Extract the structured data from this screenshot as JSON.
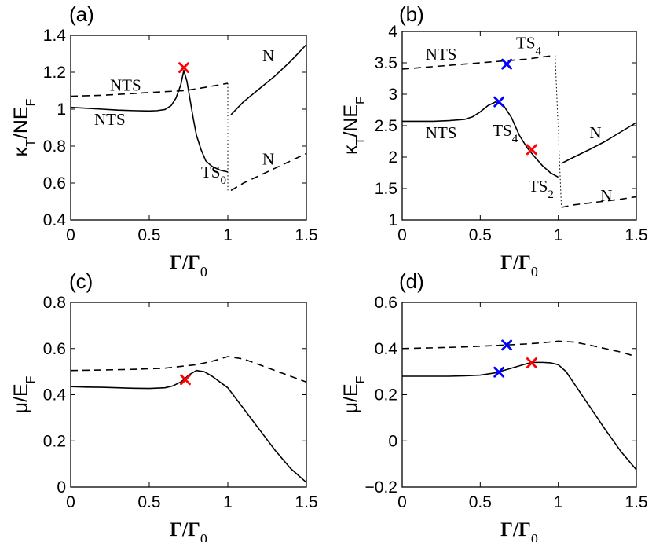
{
  "chart_data": [
    {
      "panel": "(a)",
      "type": "line",
      "xlabel": "Γ/Γ₀",
      "ylabel": "κT/NEF",
      "xlim": [
        0,
        1.5
      ],
      "ylim": [
        0.4,
        1.4
      ],
      "xticks": [
        "0",
        "0.5",
        "1",
        "1.5"
      ],
      "yticks": [
        "0.4",
        "0.6",
        "0.8",
        "1",
        "1.2",
        "1.4"
      ],
      "series": [
        {
          "name": "NTS solid",
          "style": "solid",
          "x": [
            0,
            0.1,
            0.2,
            0.3,
            0.4,
            0.5,
            0.55,
            0.6,
            0.64,
            0.67,
            0.7,
            0.72,
            0.74,
            0.76,
            0.78,
            0.8,
            0.83,
            0.86,
            0.9,
            0.95,
            1.0
          ],
          "y": [
            1.01,
            1.005,
            1.0,
            0.995,
            0.992,
            0.99,
            0.992,
            0.998,
            1.02,
            1.06,
            1.13,
            1.21,
            1.15,
            1.05,
            0.95,
            0.86,
            0.78,
            0.72,
            0.69,
            0.67,
            0.66
          ]
        },
        {
          "name": "NTS dashed",
          "style": "dashed",
          "x": [
            0,
            0.2,
            0.4,
            0.6,
            0.72,
            0.8,
            0.9,
            1.0
          ],
          "y": [
            1.07,
            1.075,
            1.085,
            1.095,
            1.1,
            1.11,
            1.125,
            1.14
          ]
        },
        {
          "name": "N solid",
          "style": "solid",
          "x": [
            1.02,
            1.1,
            1.2,
            1.3,
            1.4,
            1.5
          ],
          "y": [
            0.97,
            1.04,
            1.11,
            1.18,
            1.26,
            1.35
          ]
        },
        {
          "name": "N dashed",
          "style": "dashed",
          "x": [
            1.02,
            1.1,
            1.2,
            1.3,
            1.4,
            1.5
          ],
          "y": [
            0.56,
            0.6,
            0.64,
            0.68,
            0.72,
            0.76
          ]
        },
        {
          "name": "transition",
          "style": "dotted",
          "x": [
            1.0,
            1.0
          ],
          "y": [
            1.14,
            0.56
          ]
        }
      ],
      "markers": [
        {
          "x": 0.72,
          "y": 1.225,
          "color": "#ff0000"
        }
      ],
      "annotations": [
        {
          "text": "NTS",
          "x": 0.25,
          "y": 1.1
        },
        {
          "text": "NTS",
          "x": 0.15,
          "y": 0.915
        },
        {
          "text": "TS",
          "sub": "0",
          "x": 0.83,
          "y": 0.63
        },
        {
          "text": "N",
          "x": 1.22,
          "y": 1.26
        },
        {
          "text": "N",
          "x": 1.22,
          "y": 0.7
        }
      ]
    },
    {
      "panel": "(b)",
      "type": "line",
      "xlabel": "Γ/Γ₀",
      "ylabel": "κT/NEF",
      "xlim": [
        0,
        1.5
      ],
      "ylim": [
        1,
        4
      ],
      "xticks": [
        "0",
        "0.5",
        "1",
        "1.5"
      ],
      "yticks": [
        "1",
        "1.5",
        "2",
        "2.5",
        "3",
        "3.5",
        "4"
      ],
      "series": [
        {
          "name": "NTS solid",
          "style": "solid",
          "x": [
            0,
            0.1,
            0.2,
            0.3,
            0.4,
            0.45,
            0.5,
            0.55,
            0.6,
            0.65,
            0.7,
            0.75,
            0.8,
            0.85,
            0.9,
            0.95,
            1.0
          ],
          "y": [
            2.57,
            2.57,
            2.57,
            2.58,
            2.6,
            2.64,
            2.72,
            2.82,
            2.88,
            2.82,
            2.63,
            2.35,
            2.15,
            2.0,
            1.86,
            1.75,
            1.68
          ]
        },
        {
          "name": "NTS dashed",
          "style": "dashed",
          "x": [
            0,
            0.2,
            0.4,
            0.6,
            0.8,
            0.98
          ],
          "y": [
            3.4,
            3.44,
            3.48,
            3.52,
            3.56,
            3.62
          ]
        },
        {
          "name": "N solid",
          "style": "solid",
          "x": [
            1.02,
            1.1,
            1.2,
            1.3,
            1.4,
            1.5
          ],
          "y": [
            1.9,
            2.0,
            2.12,
            2.25,
            2.4,
            2.55
          ]
        },
        {
          "name": "N dashed",
          "style": "dashed",
          "x": [
            1.02,
            1.1,
            1.2,
            1.3,
            1.4,
            1.5
          ],
          "y": [
            1.2,
            1.24,
            1.27,
            1.3,
            1.33,
            1.37
          ]
        },
        {
          "name": "transition",
          "style": "dotted",
          "x": [
            0.98,
            1.02
          ],
          "y": [
            3.62,
            1.2
          ]
        }
      ],
      "markers": [
        {
          "x": 0.67,
          "y": 3.48,
          "color": "#0000ff"
        },
        {
          "x": 0.62,
          "y": 2.88,
          "color": "#0000ff"
        },
        {
          "x": 0.83,
          "y": 2.12,
          "color": "#ff0000"
        }
      ],
      "annotations": [
        {
          "text": "NTS",
          "x": 0.15,
          "y": 3.55
        },
        {
          "text": "TS",
          "sub": "4",
          "x": 0.73,
          "y": 3.73
        },
        {
          "text": "NTS",
          "x": 0.15,
          "y": 2.3
        },
        {
          "text": "TS",
          "sub": "4",
          "x": 0.58,
          "y": 2.34
        },
        {
          "text": "TS",
          "sub": "2",
          "x": 0.81,
          "y": 1.45
        },
        {
          "text": "N",
          "x": 1.2,
          "y": 2.3
        },
        {
          "text": "N",
          "x": 1.27,
          "y": 1.3
        }
      ]
    },
    {
      "panel": "(c)",
      "type": "line",
      "xlabel": "Γ/Γ₀",
      "ylabel": "μ/EF",
      "xlim": [
        0,
        1.5
      ],
      "ylim": [
        0,
        0.8
      ],
      "xticks": [
        "0",
        "0.5",
        "1",
        "1.5"
      ],
      "yticks": [
        "0",
        "0.2",
        "0.4",
        "0.6",
        "0.8"
      ],
      "series": [
        {
          "name": "solid",
          "style": "solid",
          "x": [
            0,
            0.1,
            0.2,
            0.3,
            0.4,
            0.5,
            0.6,
            0.65,
            0.7,
            0.72,
            0.75,
            0.8,
            0.85,
            0.9,
            1.0,
            1.1,
            1.2,
            1.3,
            1.4,
            1.5
          ],
          "y": [
            0.435,
            0.433,
            0.432,
            0.43,
            0.428,
            0.427,
            0.43,
            0.438,
            0.455,
            0.465,
            0.485,
            0.505,
            0.5,
            0.48,
            0.43,
            0.34,
            0.25,
            0.16,
            0.08,
            0.02
          ]
        },
        {
          "name": "dashed",
          "style": "dashed",
          "x": [
            0,
            0.2,
            0.4,
            0.6,
            0.8,
            0.9,
            1.0,
            1.1,
            1.2,
            1.3,
            1.4,
            1.5
          ],
          "y": [
            0.505,
            0.507,
            0.51,
            0.515,
            0.53,
            0.545,
            0.565,
            0.555,
            0.53,
            0.505,
            0.48,
            0.455
          ]
        }
      ],
      "markers": [
        {
          "x": 0.73,
          "y": 0.465,
          "color": "#ff0000"
        }
      ],
      "annotations": []
    },
    {
      "panel": "(d)",
      "type": "line",
      "xlabel": "Γ/Γ₀",
      "ylabel": "μ/EF",
      "xlim": [
        0,
        1.5
      ],
      "ylim": [
        -0.2,
        0.6
      ],
      "xticks": [
        "0",
        "0.5",
        "1",
        "1.5"
      ],
      "yticks": [
        "−0.2",
        "0",
        "0.2",
        "0.4",
        "0.6"
      ],
      "series": [
        {
          "name": "solid",
          "style": "solid",
          "x": [
            0,
            0.1,
            0.2,
            0.3,
            0.4,
            0.5,
            0.6,
            0.7,
            0.8,
            0.85,
            0.9,
            0.95,
            1.0,
            1.05,
            1.1,
            1.2,
            1.3,
            1.4,
            1.5
          ],
          "y": [
            0.28,
            0.28,
            0.28,
            0.28,
            0.282,
            0.285,
            0.295,
            0.315,
            0.335,
            0.34,
            0.34,
            0.338,
            0.33,
            0.3,
            0.25,
            0.15,
            0.05,
            -0.045,
            -0.125
          ]
        },
        {
          "name": "dashed",
          "style": "dashed",
          "x": [
            0,
            0.2,
            0.4,
            0.6,
            0.8,
            0.9,
            1.0,
            1.1,
            1.2,
            1.3,
            1.4,
            1.5
          ],
          "y": [
            0.4,
            0.403,
            0.407,
            0.413,
            0.42,
            0.425,
            0.432,
            0.428,
            0.415,
            0.4,
            0.385,
            0.365
          ]
        }
      ],
      "markers": [
        {
          "x": 0.67,
          "y": 0.415,
          "color": "#0000ff"
        },
        {
          "x": 0.62,
          "y": 0.298,
          "color": "#0000ff"
        },
        {
          "x": 0.83,
          "y": 0.338,
          "color": "#ff0000"
        }
      ],
      "annotations": []
    }
  ]
}
